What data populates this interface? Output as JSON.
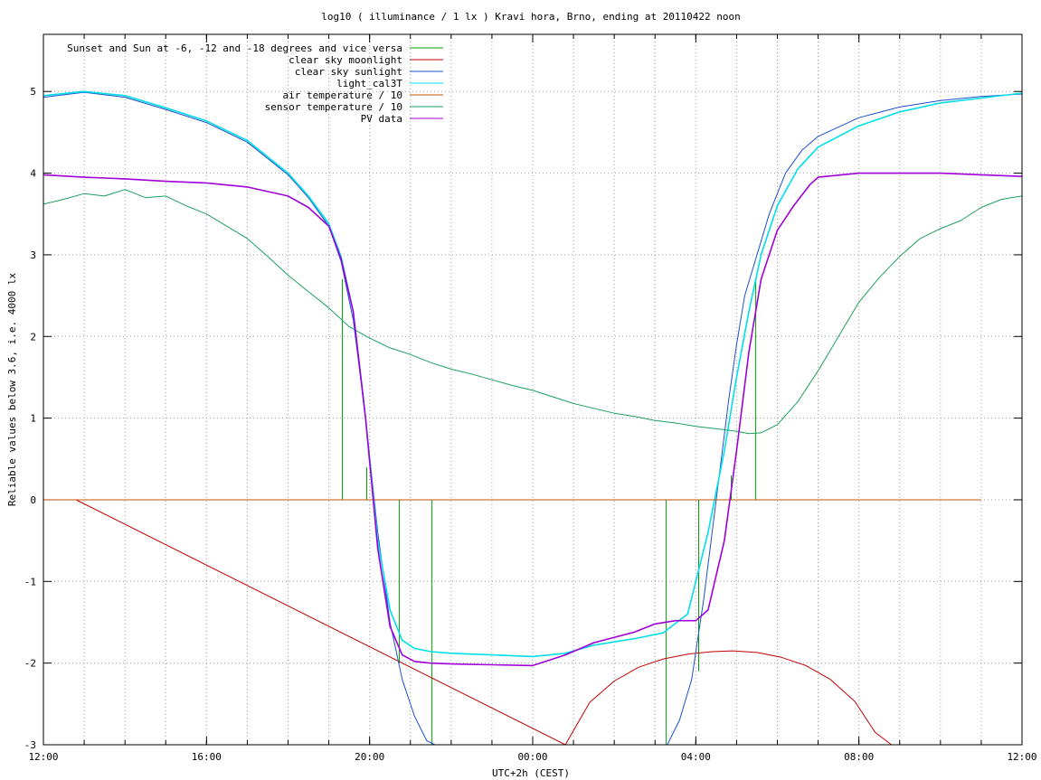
{
  "chart_data": {
    "type": "line",
    "title": "log10 ( illuminance / 1 lx ) Kravi hora, Brno, ending at 20110422 noon",
    "xlabel": "UTC+2h (CEST)",
    "ylabel": "Reliable values below 3.6, i.e. 4000 lx",
    "xlim": [
      0,
      24
    ],
    "ylim": [
      -3,
      5.7
    ],
    "grid": true,
    "legend_position": "top-left",
    "x_ticks": [
      {
        "x": 0,
        "label": "12:00"
      },
      {
        "x": 4,
        "label": "16:00"
      },
      {
        "x": 8,
        "label": "20:00"
      },
      {
        "x": 12,
        "label": "00:00"
      },
      {
        "x": 16,
        "label": "04:00"
      },
      {
        "x": 20,
        "label": "08:00"
      },
      {
        "x": 24,
        "label": "12:00"
      }
    ],
    "y_ticks": [
      {
        "y": 5,
        "label": "5"
      },
      {
        "y": 4,
        "label": "4"
      },
      {
        "y": 3,
        "label": "3"
      },
      {
        "y": 2,
        "label": "2"
      },
      {
        "y": 1,
        "label": "1"
      },
      {
        "y": 0,
        "label": "0"
      },
      {
        "y": -1,
        "label": "-1"
      },
      {
        "y": -2,
        "label": "-2"
      },
      {
        "y": -3,
        "label": "-3"
      }
    ],
    "series": [
      {
        "name": "Sunset and Sun at -6, -12 and -18 degrees and vice versa",
        "color": "#00a000",
        "type": "events",
        "events": [
          {
            "x": 7.33,
            "y0": 0,
            "y1": 2.7
          },
          {
            "x": 7.93,
            "y0": 0,
            "y1": 0.4
          },
          {
            "x": 8.73,
            "y0": 0,
            "y1": -2.0
          },
          {
            "x": 9.53,
            "y0": 0,
            "y1": -3.0
          },
          {
            "x": 15.27,
            "y0": 0,
            "y1": -3.0
          },
          {
            "x": 16.07,
            "y0": 0,
            "y1": -2.1
          },
          {
            "x": 16.87,
            "y0": 0,
            "y1": 0.3
          },
          {
            "x": 17.47,
            "y0": 0,
            "y1": 2.7
          }
        ]
      },
      {
        "name": "clear sky moonlight",
        "color": "#c00000",
        "x": [
          0.8,
          12.8,
          13.4,
          14.0,
          14.6,
          15.2,
          15.8,
          16.4,
          16.9,
          17.5,
          18.1,
          18.7,
          19.3,
          19.9,
          20.4,
          20.8
        ],
        "y": [
          0,
          -3.0,
          -2.48,
          -2.22,
          -2.05,
          -1.95,
          -1.89,
          -1.86,
          -1.85,
          -1.87,
          -1.93,
          -2.03,
          -2.2,
          -2.47,
          -2.85,
          -3.0
        ]
      },
      {
        "name": "clear sky sunlight",
        "color": "#1c4fd0",
        "x": [
          0,
          1,
          2,
          3,
          4,
          5,
          6,
          6.5,
          7,
          7.3,
          7.6,
          7.9,
          8.2,
          8.5,
          8.8,
          9.1,
          9.4,
          9.6,
          15.3,
          15.6,
          15.9,
          16.2,
          16.5,
          16.8,
          17.0,
          17.2,
          17.5,
          17.8,
          18.2,
          18.6,
          19,
          20,
          21,
          22,
          23,
          24
        ],
        "y": [
          4.93,
          4.99,
          4.93,
          4.78,
          4.62,
          4.38,
          3.98,
          3.7,
          3.35,
          2.92,
          2.2,
          1.0,
          -0.4,
          -1.5,
          -2.2,
          -2.65,
          -2.95,
          -3.0,
          -3.0,
          -2.7,
          -2.2,
          -1.2,
          0.0,
          1.2,
          1.9,
          2.5,
          3.0,
          3.5,
          4.0,
          4.28,
          4.45,
          4.68,
          4.81,
          4.89,
          4.94,
          4.97
        ]
      },
      {
        "name": "light_cal3T",
        "color": "#00dfe8",
        "x": [
          0,
          1,
          2,
          3,
          4,
          5,
          6,
          6.5,
          7,
          7.3,
          7.6,
          7.9,
          8.2,
          8.5,
          8.8,
          9.1,
          9.5,
          10,
          11,
          12,
          12.8,
          13.5,
          14.5,
          15.2,
          15.8,
          16.3,
          16.7,
          17.0,
          17.3,
          17.6,
          18.0,
          18.5,
          19,
          20,
          21,
          22,
          23,
          24
        ],
        "y": [
          4.95,
          5.0,
          4.95,
          4.8,
          4.64,
          4.4,
          4.0,
          3.72,
          3.38,
          2.98,
          2.3,
          1.0,
          -0.5,
          -1.35,
          -1.72,
          -1.82,
          -1.86,
          -1.88,
          -1.9,
          -1.92,
          -1.88,
          -1.78,
          -1.7,
          -1.63,
          -1.4,
          -0.4,
          0.6,
          1.5,
          2.3,
          3.0,
          3.6,
          4.05,
          4.32,
          4.58,
          4.75,
          4.86,
          4.92,
          4.98
        ]
      },
      {
        "name": "air temperature / 10",
        "color": "#c85000",
        "x": [
          0,
          23.0
        ],
        "y": [
          0,
          0
        ]
      },
      {
        "name": "sensor temperature / 10",
        "color": "#1aa060",
        "x": [
          0,
          0.5,
          1,
          1.5,
          2,
          2.5,
          3,
          3.5,
          4,
          4.5,
          5,
          5.5,
          6,
          6.5,
          7,
          7.5,
          8,
          8.5,
          9,
          9.5,
          10,
          10.5,
          11,
          11.5,
          12,
          12.5,
          13,
          13.5,
          14,
          14.5,
          15,
          15.5,
          16,
          16.5,
          17,
          17.3,
          17.6,
          18,
          18.5,
          19,
          19.5,
          20,
          20.5,
          21,
          21.5,
          22,
          22.5,
          23,
          23.5,
          24
        ],
        "y": [
          3.62,
          3.68,
          3.75,
          3.72,
          3.8,
          3.7,
          3.72,
          3.6,
          3.5,
          3.35,
          3.2,
          2.98,
          2.75,
          2.55,
          2.35,
          2.12,
          1.98,
          1.86,
          1.78,
          1.68,
          1.6,
          1.54,
          1.47,
          1.4,
          1.34,
          1.26,
          1.18,
          1.12,
          1.06,
          1.02,
          0.97,
          0.94,
          0.9,
          0.87,
          0.84,
          0.81,
          0.82,
          0.92,
          1.2,
          1.58,
          2.0,
          2.42,
          2.72,
          2.98,
          3.2,
          3.32,
          3.42,
          3.58,
          3.68,
          3.72
        ]
      },
      {
        "name": "PV data",
        "color": "#a000d8",
        "x": [
          0,
          1,
          2,
          3,
          4,
          5,
          6,
          6.5,
          7,
          7.3,
          7.6,
          7.9,
          8.2,
          8.5,
          8.8,
          9.1,
          9.5,
          10,
          11,
          12,
          12.8,
          13.5,
          14.5,
          15,
          15.5,
          16,
          16.3,
          16.7,
          17.0,
          17.3,
          17.6,
          18.0,
          18.4,
          18.8,
          19,
          20,
          21,
          22,
          23,
          24
        ],
        "y": [
          3.98,
          3.95,
          3.93,
          3.9,
          3.88,
          3.83,
          3.72,
          3.58,
          3.35,
          2.95,
          2.3,
          1.0,
          -0.6,
          -1.55,
          -1.9,
          -1.98,
          -2.0,
          -2.01,
          -2.02,
          -2.03,
          -1.9,
          -1.75,
          -1.62,
          -1.52,
          -1.48,
          -1.48,
          -1.35,
          -0.5,
          0.6,
          1.8,
          2.7,
          3.3,
          3.6,
          3.86,
          3.95,
          4.0,
          4.0,
          4.0,
          3.98,
          3.96
        ]
      }
    ]
  }
}
